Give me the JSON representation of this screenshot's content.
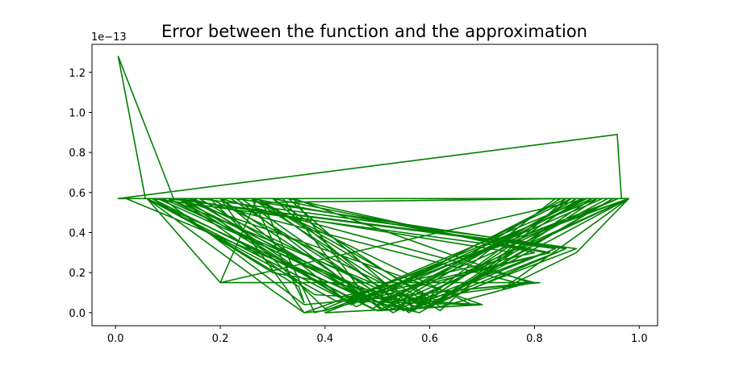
{
  "chart_data": {
    "type": "line",
    "title": "Error between the function and the approximation",
    "xlabel": "",
    "ylabel": "",
    "offset_label": "1e−13",
    "xlim": [
      -0.045,
      1.035
    ],
    "ylim": [
      -0.065,
      1.34
    ],
    "x_ticks": [
      0.0,
      0.2,
      0.4,
      0.6,
      0.8,
      1.0
    ],
    "x_tick_labels": [
      "0.0",
      "0.2",
      "0.4",
      "0.6",
      "0.8",
      "1.0"
    ],
    "y_ticks": [
      0.0,
      0.2,
      0.4,
      0.6,
      0.8,
      1.0,
      1.2
    ],
    "y_tick_labels": [
      "0.0",
      "0.2",
      "0.4",
      "0.6",
      "0.8",
      "1.0",
      "1.2"
    ],
    "line_color": "#008000",
    "grid": false,
    "series": [
      {
        "name": "",
        "x": [
          0.005,
          0.11,
          0.005,
          0.057,
          0.005,
          0.958,
          0.966,
          0.005,
          0.98,
          0.88,
          0.74,
          0.98,
          0.02,
          0.53,
          0.98,
          0.06,
          0.5,
          0.89,
          0.06,
          0.44,
          0.83,
          0.07,
          0.49,
          0.9,
          0.08,
          0.56,
          0.86,
          0.1,
          0.6,
          0.92,
          0.12,
          0.52,
          0.78,
          0.14,
          0.58,
          0.88,
          0.16,
          0.48,
          0.8,
          0.2,
          0.36,
          0.3,
          0.06,
          0.2,
          0.27,
          0.62,
          0.86,
          0.28,
          0.38,
          0.83,
          0.26,
          0.36,
          0.35,
          0.07,
          0.5,
          0.7,
          0.12,
          0.46,
          0.86,
          0.18,
          0.4,
          0.9,
          0.2,
          0.81,
          0.36,
          0.09,
          0.57,
          0.87,
          0.14,
          0.51,
          0.85,
          0.2,
          0.44,
          0.92,
          0.24,
          0.54,
          0.82,
          0.3,
          0.56,
          0.89,
          0.32,
          0.47,
          0.93,
          0.22,
          0.55,
          0.84,
          0.1,
          0.52,
          0.98,
          0.06,
          0.42,
          0.68,
          0.26,
          0.59,
          0.91,
          0.3,
          0.62,
          0.79,
          0.34,
          0.48,
          0.87,
          0.2,
          0.53,
          0.94,
          0.15,
          0.45,
          0.91,
          0.18,
          0.6,
          0.86,
          0.23,
          0.51,
          0.88,
          0.13,
          0.43,
          0.8,
          0.33,
          0.57,
          0.84,
          0.07,
          0.3,
          0.62,
          0.27,
          0.55,
          0.76,
          0.12,
          0.38,
          0.7,
          0.4,
          0.96,
          0.5,
          0.58,
          0.95,
          0.6,
          0.98,
          0.4,
          0.36,
          0.98
        ],
        "y": [
          1.28,
          0.575,
          1.28,
          0.57,
          0.57,
          0.89,
          0.57,
          0.57,
          0.57,
          0.3,
          0.12,
          0.57,
          0.57,
          0.02,
          0.57,
          0.57,
          0.04,
          0.57,
          0.57,
          0.06,
          0.3,
          0.57,
          0.02,
          0.57,
          0.57,
          0.01,
          0.32,
          0.57,
          0.03,
          0.57,
          0.57,
          0.05,
          0.14,
          0.57,
          0.02,
          0.32,
          0.57,
          0.07,
          0.15,
          0.57,
          0.0,
          0.11,
          0.57,
          0.15,
          0.57,
          0.01,
          0.57,
          0.55,
          0.0,
          0.3,
          0.57,
          0.05,
          0.13,
          0.57,
          0.01,
          0.04,
          0.57,
          0.03,
          0.57,
          0.57,
          0.02,
          0.57,
          0.15,
          0.15,
          0.04,
          0.57,
          0.01,
          0.57,
          0.57,
          0.02,
          0.57,
          0.57,
          0.06,
          0.57,
          0.57,
          0.02,
          0.3,
          0.57,
          0.0,
          0.57,
          0.57,
          0.05,
          0.57,
          0.57,
          0.01,
          0.32,
          0.57,
          0.03,
          0.57,
          0.57,
          0.06,
          0.04,
          0.57,
          0.02,
          0.57,
          0.57,
          0.03,
          0.15,
          0.57,
          0.07,
          0.57,
          0.57,
          0.0,
          0.57,
          0.57,
          0.04,
          0.57,
          0.57,
          0.03,
          0.32,
          0.57,
          0.01,
          0.57,
          0.57,
          0.08,
          0.3,
          0.57,
          0.02,
          0.57,
          0.57,
          0.2,
          0.05,
          0.57,
          0.04,
          0.3,
          0.57,
          0.09,
          0.04,
          0.0,
          0.57,
          0.05,
          0.0,
          0.57,
          0.04,
          0.57,
          0.01,
          0.0,
          0.57
        ]
      }
    ]
  }
}
